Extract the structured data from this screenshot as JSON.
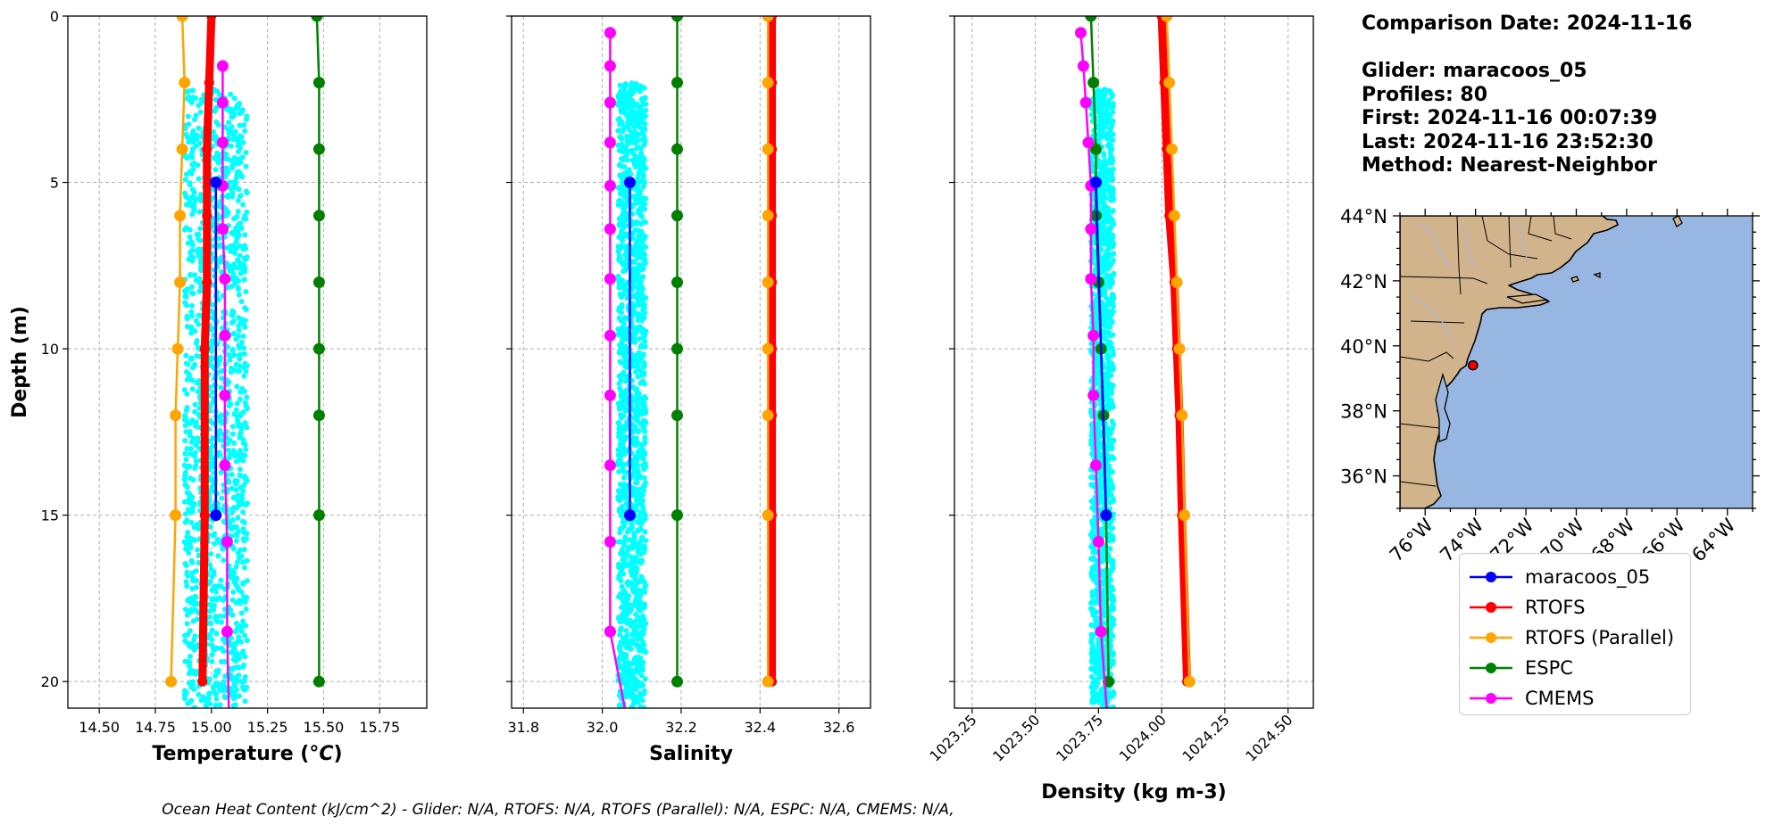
{
  "chart_data": [
    {
      "type": "line",
      "id": "temperature",
      "xlabel": "Temperature (°C)",
      "ylabel": "Depth (m)",
      "xlim": [
        14.36,
        15.96
      ],
      "ylim": [
        0,
        20.8
      ],
      "y_inverted": true,
      "xticks": [
        14.5,
        14.75,
        15.0,
        15.25,
        15.5,
        15.75
      ],
      "xtick_labels": [
        "14.50",
        "14.75",
        "15.00",
        "15.25",
        "15.50",
        "15.75"
      ],
      "yticks": [
        0,
        5,
        10,
        15,
        20
      ],
      "ytick_labels": [
        "0",
        "5",
        "10",
        "15",
        "20"
      ],
      "grid": true,
      "glider_scatter": {
        "x_range": [
          14.88,
          15.16
        ],
        "depth_range": [
          2.2,
          20.8
        ]
      },
      "series": [
        {
          "name": "maracoos_05",
          "x": [
            15.02,
            15.02
          ],
          "y": [
            5,
            15
          ]
        },
        {
          "name": "RTOFS",
          "x": [
            15.0,
            14.99,
            14.98,
            14.98,
            14.98,
            14.97,
            14.97,
            14.96
          ],
          "y": [
            0,
            2,
            4,
            6,
            8,
            10,
            15,
            20
          ]
        },
        {
          "name": "RTOFS (Parallel)",
          "x": [
            14.87,
            14.88,
            14.87,
            14.86,
            14.86,
            14.85,
            14.84,
            14.84,
            14.82
          ],
          "y": [
            0,
            2,
            4,
            6,
            8,
            10,
            12,
            15,
            20
          ]
        },
        {
          "name": "ESPC",
          "x": [
            15.47,
            15.48,
            15.48,
            15.48,
            15.48,
            15.48,
            15.48,
            15.48,
            15.48
          ],
          "y": [
            0,
            2,
            4,
            6,
            8,
            10,
            12,
            15,
            20
          ]
        },
        {
          "name": "CMEMS",
          "x": [
            15.05,
            15.05,
            15.05,
            15.05,
            15.05,
            15.06,
            15.06,
            15.06,
            15.06,
            15.07,
            15.07,
            15.08
          ],
          "y": [
            1.5,
            2.6,
            3.8,
            5.1,
            6.4,
            7.9,
            9.6,
            11.4,
            13.5,
            15.8,
            18.5,
            21.6
          ]
        }
      ]
    },
    {
      "type": "line",
      "id": "salinity",
      "xlabel": "Salinity",
      "xlim": [
        31.77,
        32.68
      ],
      "ylim": [
        0,
        20.8
      ],
      "y_inverted": true,
      "xticks": [
        31.8,
        32.0,
        32.2,
        32.4,
        32.6
      ],
      "xtick_labels": [
        "31.8",
        "32.0",
        "32.2",
        "32.4",
        "32.6"
      ],
      "yticks": [
        0,
        5,
        10,
        15,
        20
      ],
      "grid": true,
      "glider_scatter": {
        "x_range": [
          32.04,
          32.11
        ],
        "depth_range": [
          2.0,
          20.8
        ]
      },
      "series": [
        {
          "name": "maracoos_05",
          "x": [
            32.07,
            32.07
          ],
          "y": [
            5,
            15
          ]
        },
        {
          "name": "RTOFS",
          "x": [
            32.43,
            32.43,
            32.43,
            32.43,
            32.43,
            32.43,
            32.43,
            32.43,
            32.43
          ],
          "y": [
            0,
            2,
            4,
            6,
            8,
            10,
            12,
            15,
            20
          ]
        },
        {
          "name": "RTOFS (Parallel)",
          "x": [
            32.42,
            32.42,
            32.42,
            32.42,
            32.42,
            32.42,
            32.42,
            32.42,
            32.42
          ],
          "y": [
            0,
            2,
            4,
            6,
            8,
            10,
            12,
            15,
            20
          ]
        },
        {
          "name": "ESPC",
          "x": [
            32.19,
            32.19,
            32.19,
            32.19,
            32.19,
            32.19,
            32.19,
            32.19,
            32.19
          ],
          "y": [
            0,
            2,
            4,
            6,
            8,
            10,
            12,
            15,
            20
          ]
        },
        {
          "name": "CMEMS",
          "x": [
            32.02,
            32.02,
            32.02,
            32.02,
            32.02,
            32.02,
            32.02,
            32.02,
            32.02,
            32.02,
            32.02,
            32.02,
            32.02,
            32.07
          ],
          "y": [
            0.5,
            1.5,
            2.6,
            3.8,
            5.1,
            6.4,
            7.9,
            9.6,
            11.4,
            13.5,
            15.8,
            18.5,
            18.5,
            21.6
          ]
        }
      ]
    },
    {
      "type": "line",
      "id": "density",
      "xlabel": "Density (kg m-3)",
      "xlim": [
        1023.18,
        1024.6
      ],
      "ylim": [
        0,
        20.8
      ],
      "y_inverted": true,
      "xticks": [
        1023.25,
        1023.5,
        1023.75,
        1024.0,
        1024.25,
        1024.5
      ],
      "xtick_labels": [
        "1023.25",
        "1023.50",
        "1023.75",
        "1024.00",
        "1024.25",
        "1024.50"
      ],
      "yticks": [
        0,
        5,
        10,
        15,
        20
      ],
      "grid": true,
      "glider_scatter": {
        "x_range": [
          1023.72,
          1023.81
        ],
        "depth_range": [
          2.2,
          20.8
        ]
      },
      "series": [
        {
          "name": "maracoos_05",
          "x": [
            1023.74,
            1023.78
          ],
          "y": [
            5,
            15
          ]
        },
        {
          "name": "RTOFS",
          "x": [
            1024.0,
            1024.01,
            1024.02,
            1024.03,
            1024.05,
            1024.06,
            1024.07,
            1024.08,
            1024.1
          ],
          "y": [
            0,
            2,
            4,
            6,
            8,
            10,
            12,
            15,
            20
          ]
        },
        {
          "name": "RTOFS (Parallel)",
          "x": [
            1024.02,
            1024.03,
            1024.04,
            1024.05,
            1024.06,
            1024.07,
            1024.08,
            1024.09,
            1024.11
          ],
          "y": [
            0,
            2,
            4,
            6,
            8,
            10,
            12,
            15,
            20
          ]
        },
        {
          "name": "ESPC",
          "x": [
            1023.72,
            1023.73,
            1023.74,
            1023.74,
            1023.75,
            1023.76,
            1023.77,
            1023.78,
            1023.79
          ],
          "y": [
            0,
            2,
            4,
            6,
            8,
            10,
            12,
            15,
            20
          ]
        },
        {
          "name": "CMEMS",
          "x": [
            1023.68,
            1023.69,
            1023.7,
            1023.71,
            1023.72,
            1023.72,
            1023.72,
            1023.73,
            1023.73,
            1023.74,
            1023.75,
            1023.76,
            1023.79
          ],
          "y": [
            0.5,
            1.5,
            2.6,
            3.8,
            5.1,
            6.4,
            7.9,
            9.6,
            11.4,
            13.5,
            15.8,
            18.5,
            21.6
          ]
        }
      ]
    }
  ],
  "series_colors": {
    "maracoos_05": "#0000ff",
    "RTOFS": "#ff0000",
    "RTOFS (Parallel)": "#ffa500",
    "ESPC": "#008000",
    "CMEMS": "#ff00ff",
    "glider_scatter": "#00ffff"
  },
  "info": {
    "comparison_date": "Comparison Date: 2024-11-16",
    "glider": "Glider: maracoos_05",
    "profiles": "Profiles: 80",
    "first": "First: 2024-11-16 00:07:39",
    "last": "Last: 2024-11-16 23:52:30",
    "method": "Method: Nearest-Neighbor"
  },
  "map": {
    "lon_range": [
      -77,
      -63
    ],
    "lat_range": [
      35,
      44
    ],
    "xtick_labels": [
      "76°W",
      "74°W",
      "72°W",
      "70°W",
      "68°W",
      "66°W",
      "64°W"
    ],
    "ytick_labels": [
      "44°N",
      "42°N",
      "40°N",
      "38°N",
      "36°N"
    ],
    "glider_position": {
      "lon": -74.1,
      "lat": 39.4
    },
    "land_color": "#d2b48c",
    "ocean_color": "#97b6e1"
  },
  "legend": {
    "items": [
      "maracoos_05",
      "RTOFS",
      "RTOFS (Parallel)",
      "ESPC",
      "CMEMS"
    ]
  },
  "footer": "Ocean Heat Content (kJ/cm^2) - Glider: N/A,  RTOFS: N/A,  RTOFS (Parallel): N/A,  ESPC: N/A,  CMEMS: N/A,"
}
